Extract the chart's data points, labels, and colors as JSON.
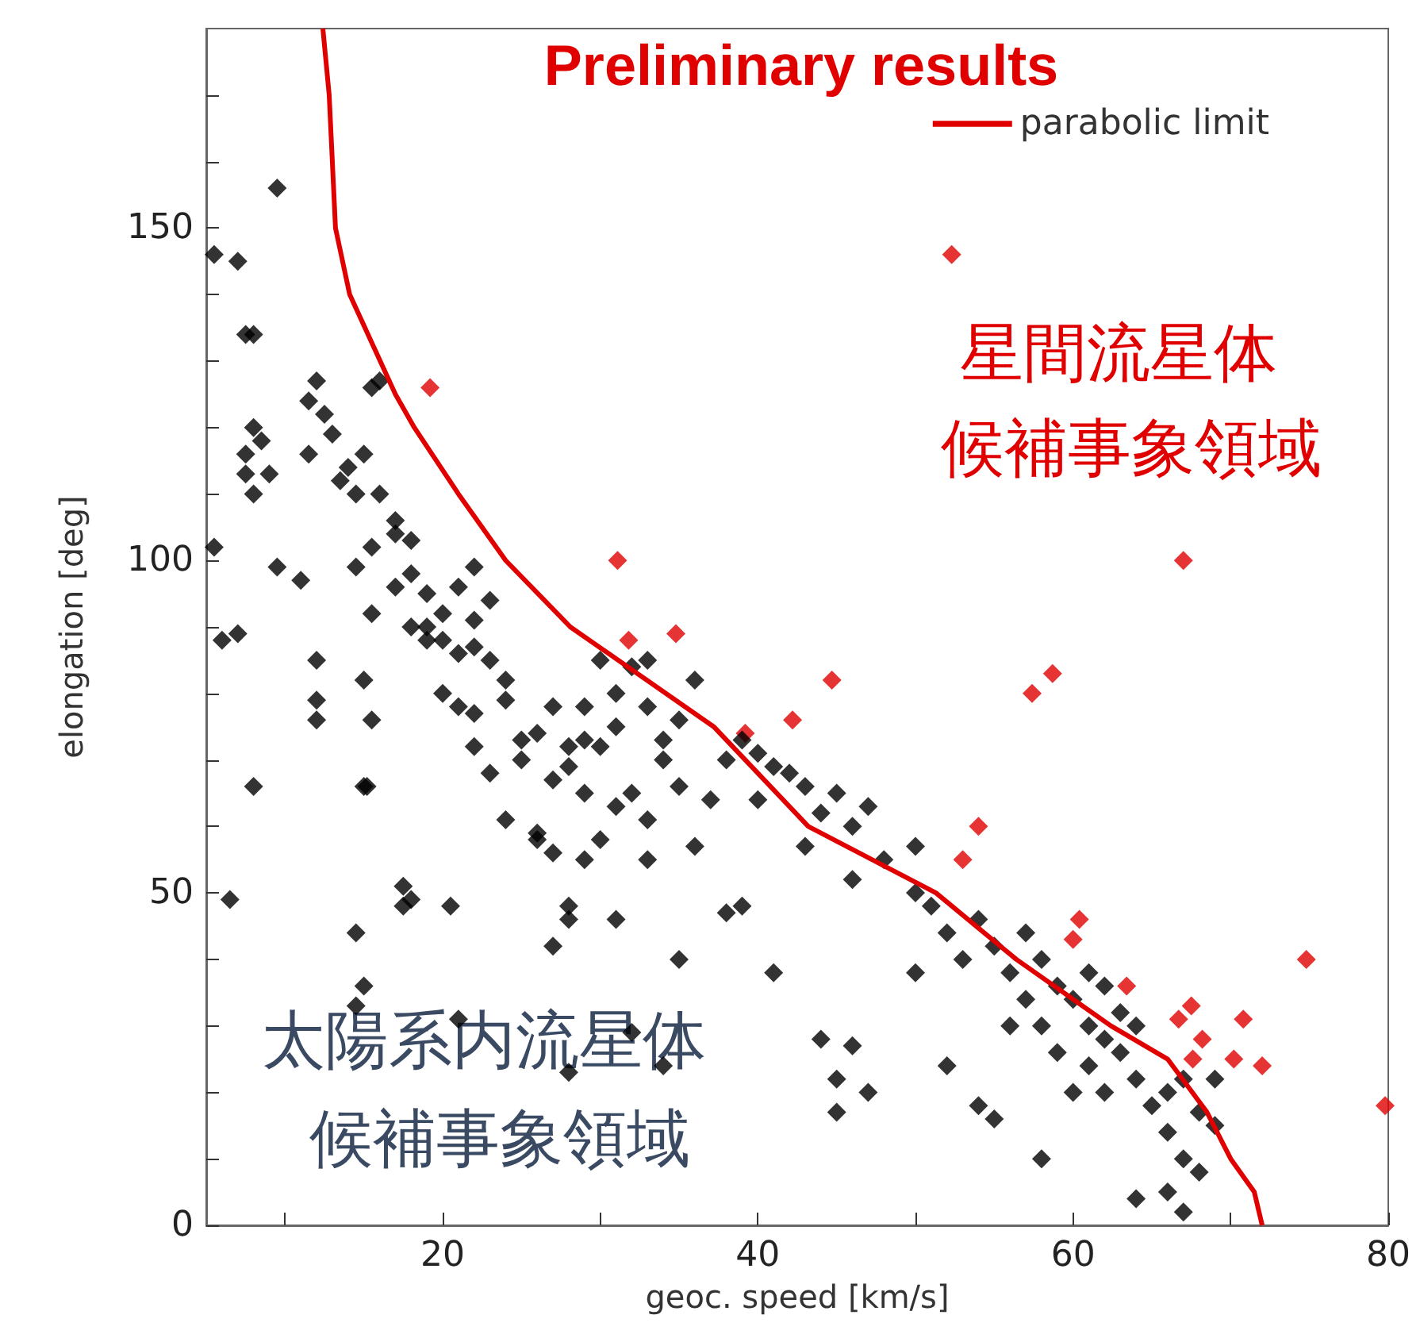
{
  "chart_data": {
    "type": "scatter",
    "title": "Preliminary results",
    "xlabel": "geoc. speed [km/s]",
    "ylabel": "elongation [deg]",
    "annotations": [
      "星間流星体",
      "候補事象領域",
      "太陽系内流星体",
      "候補事象領域"
    ],
    "xlim": [
      5,
      80
    ],
    "xticks": [
      {
        "value": 10,
        "label": null
      },
      20,
      {
        "value": 30,
        "label": null
      },
      40,
      {
        "value": 50,
        "label": null
      },
      60,
      {
        "value": 70,
        "label": null
      },
      80
    ],
    "ylim": [
      0,
      180
    ],
    "yticks": [
      0,
      {
        "value": 10,
        "label": null
      },
      {
        "value": 20,
        "label": null
      },
      {
        "value": 30,
        "label": null
      },
      {
        "value": 40,
        "label": null
      },
      50,
      {
        "value": 60,
        "label": null
      },
      {
        "value": 70,
        "label": null
      },
      {
        "value": 80,
        "label": null
      },
      {
        "value": 90,
        "label": null
      },
      100,
      {
        "value": 110,
        "label": null
      },
      {
        "value": 120,
        "label": null
      },
      {
        "value": 130,
        "label": null
      },
      {
        "value": 140,
        "label": null
      },
      150,
      {
        "value": 160,
        "label": null
      },
      {
        "value": 170,
        "label": null
      }
    ],
    "grid": false,
    "legend": "top right",
    "marker": "diamond",
    "series": [
      {
        "type": "line",
        "name": "parabolic limit",
        "color": "#e00000",
        "marker": "none",
        "x": [
          12.4,
          12.8,
          13.2,
          14.1,
          17,
          18.2,
          21,
          24,
          28.1,
          37.2,
          43.2,
          51.3,
          56.4,
          62.4,
          66,
          68.5,
          70,
          71.5,
          72
        ],
        "values": [
          180,
          170,
          150,
          140,
          125,
          120,
          110,
          100,
          90,
          75,
          60,
          50,
          40,
          30,
          25,
          17,
          10,
          5,
          0
        ]
      },
      {
        "color": "#e00000",
        "x": [
          19.2,
          31.1,
          31.8,
          34.8,
          39.2,
          42.2,
          44.7,
          52.3,
          54,
          53,
          57.4,
          58.7,
          67,
          60.4,
          60,
          63.4,
          66.7,
          67.5,
          68.2,
          67.6,
          70.8,
          70.2,
          72,
          74.8,
          79.8
        ],
        "values": [
          126,
          100,
          88,
          89,
          74,
          76,
          82,
          146,
          60,
          55,
          80,
          83,
          100,
          46,
          43,
          36,
          31,
          33,
          28,
          25,
          31,
          25,
          24,
          40,
          18
        ]
      },
      {
        "color": "#000000",
        "x": [
          5.5,
          7,
          9.5,
          8,
          7.5,
          8,
          8.5,
          7.5,
          9,
          8,
          5.5,
          7,
          6,
          9.5,
          11,
          7.5,
          8,
          6.5,
          12,
          12,
          12,
          11.5,
          12,
          12.5,
          13,
          11.5,
          13.5,
          14.5,
          15,
          15.5,
          16,
          14,
          16,
          17,
          15.5,
          14.5,
          15.5,
          15,
          15.5,
          15,
          15.2,
          14.5,
          15,
          14.5,
          17.5,
          18,
          17.5,
          20.5,
          21,
          17,
          18,
          18,
          19,
          19,
          20,
          20,
          21,
          22,
          22,
          23,
          21,
          23,
          20,
          21,
          22,
          24,
          24,
          22,
          26,
          25,
          27,
          28,
          27,
          29,
          28,
          29,
          30,
          31,
          31,
          32,
          30,
          33,
          34,
          34,
          32,
          33,
          35,
          30,
          27,
          26,
          28,
          27,
          28,
          31,
          26,
          37,
          38,
          39,
          40,
          41,
          40,
          42,
          43,
          44,
          45,
          46,
          47,
          43,
          46,
          50,
          48,
          50,
          51,
          52,
          54,
          53,
          55,
          56,
          57,
          57,
          58,
          59,
          56,
          58,
          59,
          60,
          61,
          62,
          61,
          63,
          64,
          62,
          65,
          66,
          67,
          64,
          60,
          66,
          68,
          67,
          69,
          68,
          66,
          64,
          67,
          69,
          63,
          62,
          61,
          50,
          52,
          54,
          55,
          58,
          45,
          46,
          44,
          45,
          47,
          38,
          24,
          22,
          17,
          18,
          19,
          25,
          23,
          29,
          35,
          36,
          33,
          31,
          33,
          29,
          36,
          39,
          41,
          35,
          32,
          28,
          34
        ],
        "values": [
          146,
          145,
          156,
          134,
          134,
          120,
          118,
          116,
          113,
          110,
          102,
          89,
          88,
          99,
          97,
          113,
          66,
          49,
          85,
          79,
          76,
          124,
          127,
          122,
          119,
          116,
          112,
          110,
          116,
          126,
          127,
          114,
          110,
          104,
          102,
          99,
          92,
          82,
          76,
          66,
          66,
          44,
          36,
          33,
          51,
          49,
          48,
          48,
          31,
          106,
          103,
          98,
          95,
          90,
          92,
          88,
          96,
          99,
          91,
          94,
          86,
          85,
          80,
          78,
          77,
          82,
          79,
          72,
          74,
          70,
          67,
          72,
          78,
          73,
          69,
          65,
          72,
          75,
          80,
          84,
          85,
          78,
          73,
          70,
          65,
          61,
          66,
          58,
          56,
          58,
          48,
          42,
          46,
          46,
          59,
          64,
          70,
          73,
          71,
          69,
          64,
          68,
          66,
          62,
          65,
          60,
          63,
          57,
          52,
          57,
          55,
          50,
          48,
          44,
          46,
          40,
          42,
          38,
          44,
          34,
          40,
          36,
          30,
          30,
          26,
          34,
          30,
          28,
          24,
          26,
          22,
          20,
          18,
          20,
          22,
          30,
          20,
          14,
          17,
          10,
          15,
          8,
          5,
          4,
          2,
          22,
          32,
          36,
          38,
          38,
          24,
          18,
          16,
          10,
          22,
          27,
          28,
          17,
          20,
          47,
          61,
          87,
          96,
          90,
          88,
          73,
          68,
          78,
          76,
          82,
          85,
          63,
          55,
          55,
          57,
          48,
          38,
          40,
          29,
          23,
          24
        ]
      }
    ]
  }
}
